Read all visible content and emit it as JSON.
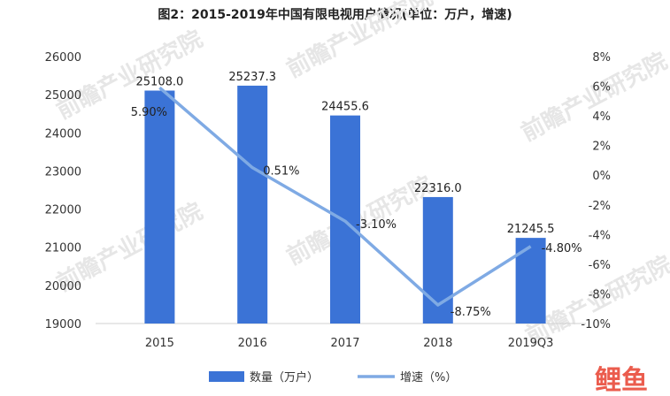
{
  "chart_data": {
    "type": "bar",
    "title": "图2：2015-2019年中国有限电视用户情况(单位：万户，增速)",
    "categories": [
      "2015",
      "2016",
      "2017",
      "2018",
      "2019Q3"
    ],
    "series": [
      {
        "name": "数量（万户）",
        "type": "bar",
        "axis": "left",
        "color": "#3B73D6",
        "values": [
          25108.0,
          25237.3,
          24455.6,
          22316.0,
          21245.5
        ],
        "labels": [
          "25108.0",
          "25237.3",
          "24455.6",
          "22316.0",
          "21245.5"
        ]
      },
      {
        "name": "增速（%）",
        "type": "line",
        "axis": "right",
        "color": "#7FAAE4",
        "values": [
          5.9,
          0.51,
          -3.1,
          -8.75,
          -4.8
        ],
        "labels": [
          "5.90%",
          "0.51%",
          "-3.10%",
          "-8.75%",
          "-4.80%"
        ]
      }
    ],
    "y_left": {
      "min": 19000,
      "max": 26000,
      "step": 1000,
      "ticks": [
        "19000",
        "20000",
        "21000",
        "22000",
        "23000",
        "24000",
        "25000",
        "26000"
      ]
    },
    "y_right": {
      "min": -10,
      "max": 8,
      "step": 2,
      "ticks": [
        "-10%",
        "-8%",
        "-6%",
        "-4%",
        "-2%",
        "0%",
        "2%",
        "4%",
        "6%",
        "8%"
      ]
    },
    "grid": false,
    "legend_position": "bottom-center"
  },
  "watermark": {
    "text": "前瞻产业研究院"
  },
  "logo": {
    "text": "鲤鱼"
  }
}
